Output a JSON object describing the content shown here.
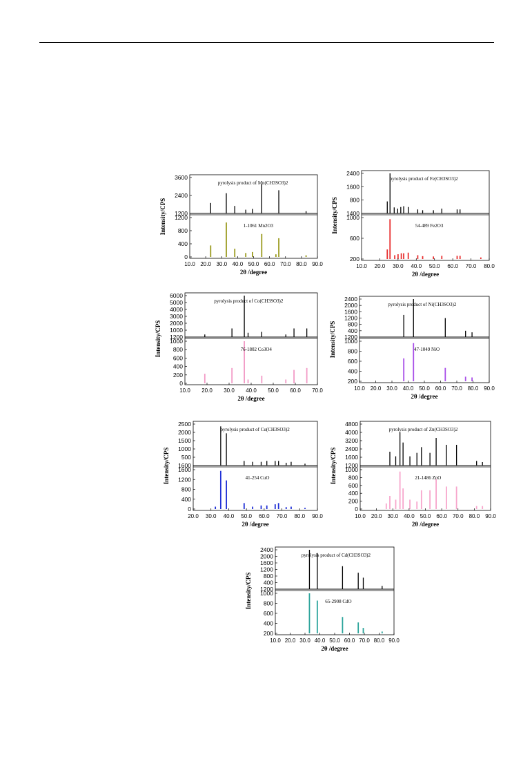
{
  "chart_data": [
    {
      "type": "bar",
      "panel": "Mn",
      "xlabel": "2θ /degree",
      "ylabel": "Intensity/CPS",
      "xticks": [
        "10.0",
        "20.0",
        "30.0",
        "40.0",
        "50.0",
        "60.0",
        "70.0",
        "80.0",
        "90.0"
      ],
      "xlim": [
        10,
        90
      ],
      "top": {
        "title": "pyrolysis product of Mn(CH3SO3)2",
        "yticks": [
          "3600",
          "2400",
          "1200"
        ],
        "ylim": [
          1200,
          3600
        ],
        "color": "#000000",
        "peaks": [
          [
            23.1,
            1900
          ],
          [
            32.9,
            2550
          ],
          [
            38.2,
            1700
          ],
          [
            45.1,
            1450
          ],
          [
            49.3,
            1500
          ],
          [
            55.1,
            3150
          ],
          [
            65.8,
            2750
          ],
          [
            82.9,
            1350
          ]
        ]
      },
      "bottom": {
        "title": "1-1061 Mn2O3",
        "yticks": [
          "1200",
          "800",
          "400",
          "0"
        ],
        "ylim": [
          0,
          1200
        ],
        "color": "#9a9a1e",
        "peaks": [
          [
            23.1,
            350
          ],
          [
            32.9,
            1050
          ],
          [
            38.2,
            250
          ],
          [
            45.1,
            120
          ],
          [
            49.3,
            150
          ],
          [
            55.1,
            700
          ],
          [
            64.0,
            80
          ],
          [
            65.8,
            570
          ],
          [
            82.9,
            50
          ]
        ]
      }
    },
    {
      "type": "bar",
      "panel": "Fe",
      "xlabel": "2θ /degree",
      "ylabel": "Intensity/CPS",
      "xticks": [
        "10.0",
        "20.0",
        "30.0",
        "40.0",
        "50.0",
        "60.0",
        "70.0",
        "80.0"
      ],
      "xlim": [
        10,
        80
      ],
      "top": {
        "title": "pyrolysis product of Fe(CH3SO3)2",
        "yticks": [
          "2400",
          "1600",
          "800",
          "1400"
        ],
        "ylim": [
          1400,
          2400
        ],
        "color": "#000000",
        "peaks": [
          [
            24.1,
            1700
          ],
          [
            25.6,
            2400
          ],
          [
            27.9,
            1550
          ],
          [
            29.8,
            1520
          ],
          [
            31.5,
            1560
          ],
          [
            33.1,
            1580
          ],
          [
            35.6,
            1560
          ],
          [
            40.8,
            1500
          ],
          [
            43.5,
            1480
          ],
          [
            49.4,
            1480
          ],
          [
            54.0,
            1520
          ],
          [
            62.4,
            1500
          ],
          [
            64.0,
            1500
          ]
        ]
      },
      "bottom": {
        "title": "54-489 Fe2O3",
        "yticks": [
          "1000",
          "600",
          "200"
        ],
        "ylim": [
          0,
          1300
        ],
        "color": "#e83030",
        "peaks": [
          [
            24.1,
            300
          ],
          [
            25.6,
            1250
          ],
          [
            28.2,
            120
          ],
          [
            30.0,
            150
          ],
          [
            31.8,
            180
          ],
          [
            33.1,
            180
          ],
          [
            35.6,
            200
          ],
          [
            40.8,
            120
          ],
          [
            43.5,
            90
          ],
          [
            49.4,
            80
          ],
          [
            54.0,
            100
          ],
          [
            62.4,
            100
          ],
          [
            64.0,
            100
          ],
          [
            75.4,
            50
          ]
        ]
      }
    },
    {
      "type": "bar",
      "panel": "Co",
      "xlabel": "2θ /degree",
      "ylabel": "Intensity/CPS",
      "xticks": [
        "10.0",
        "20.0",
        "30.0",
        "40.0",
        "50.0",
        "60.0",
        "70.0"
      ],
      "xlim": [
        10,
        70
      ],
      "top": {
        "title": "pyrolysis product of Co(CH3SO3)2",
        "yticks": [
          "6000",
          "5000",
          "4000",
          "3000",
          "2000",
          "1000",
          "1200"
        ],
        "ylim": [
          1200,
          6000
        ],
        "color": "#000000",
        "peaks": [
          [
            19.0,
            1500
          ],
          [
            31.3,
            2200
          ],
          [
            36.9,
            6000
          ],
          [
            38.6,
            1700
          ],
          [
            44.8,
            1800
          ],
          [
            55.7,
            1500
          ],
          [
            59.4,
            2200
          ],
          [
            65.2,
            2200
          ]
        ]
      },
      "bottom": {
        "title": "76-1802 Co3O4",
        "yticks": [
          "1000",
          "800",
          "600",
          "400",
          "200",
          "0"
        ],
        "ylim": [
          0,
          1100
        ],
        "color": "#f29ac6",
        "peaks": [
          [
            19.0,
            250
          ],
          [
            31.3,
            400
          ],
          [
            36.9,
            1100
          ],
          [
            38.6,
            100
          ],
          [
            44.8,
            200
          ],
          [
            55.7,
            100
          ],
          [
            59.4,
            350
          ],
          [
            65.2,
            400
          ]
        ]
      }
    },
    {
      "type": "bar",
      "panel": "Ni",
      "xlabel": "2θ /degree",
      "ylabel": "Intensity/CPS",
      "xticks": [
        "10.0",
        "20.0",
        "30.0",
        "40.0",
        "50.0",
        "60.0",
        "70.0",
        "80.0",
        "90.0"
      ],
      "xlim": [
        10,
        90
      ],
      "top": {
        "title": "pyrolysis product of Ni(CH3SO3)2",
        "yticks": [
          "2400",
          "2000",
          "1600",
          "1200",
          "800",
          "400",
          "1200"
        ],
        "ylim": [
          1200,
          2400
        ],
        "color": "#000000",
        "peaks": [
          [
            37.3,
            1900
          ],
          [
            43.3,
            2400
          ],
          [
            62.9,
            1800
          ],
          [
            75.4,
            1400
          ],
          [
            79.4,
            1350
          ]
        ]
      },
      "bottom": {
        "title": "47-1049 NiO",
        "yticks": [
          "1000",
          "800",
          "600",
          "400",
          "200"
        ],
        "ylim": [
          0,
          1050
        ],
        "color": "#a84ee8",
        "peaks": [
          [
            37.3,
            600
          ],
          [
            43.3,
            1000
          ],
          [
            62.9,
            350
          ],
          [
            75.4,
            120
          ],
          [
            79.4,
            100
          ]
        ]
      }
    },
    {
      "type": "bar",
      "panel": "Cu",
      "xlabel": "2θ /degree",
      "ylabel": "Intensity/CPS",
      "xticks": [
        "20.0",
        "30.0",
        "40.0",
        "50.0",
        "60.0",
        "70.0",
        "80.0",
        "90.0"
      ],
      "xlim": [
        20,
        90
      ],
      "top": {
        "title": "pyrolysis product of Cu(CH3SO3)2",
        "yticks": [
          "2500",
          "2000",
          "1500",
          "1000",
          "500",
          "1600"
        ],
        "ylim": [
          1600,
          2500
        ],
        "color": "#000000",
        "peaks": [
          [
            35.5,
            2450
          ],
          [
            38.7,
            2300
          ],
          [
            48.7,
            1700
          ],
          [
            53.5,
            1680
          ],
          [
            58.3,
            1680
          ],
          [
            61.5,
            1700
          ],
          [
            66.2,
            1700
          ],
          [
            68.1,
            1700
          ],
          [
            72.4,
            1660
          ],
          [
            75.2,
            1680
          ],
          [
            83.0,
            1640
          ]
        ]
      },
      "bottom": {
        "title": "41-254 CuO",
        "yticks": [
          "1600",
          "1200",
          "800",
          "400",
          "0"
        ],
        "ylim": [
          0,
          1650
        ],
        "color": "#1f2fd6",
        "peaks": [
          [
            32.5,
            100
          ],
          [
            35.5,
            1600
          ],
          [
            38.7,
            1200
          ],
          [
            48.7,
            250
          ],
          [
            53.5,
            100
          ],
          [
            58.3,
            150
          ],
          [
            61.5,
            150
          ],
          [
            66.2,
            200
          ],
          [
            68.1,
            250
          ],
          [
            72.4,
            80
          ],
          [
            75.2,
            100
          ],
          [
            83.0,
            50
          ]
        ]
      }
    },
    {
      "type": "bar",
      "panel": "Zn",
      "xlabel": "2θ /degree",
      "ylabel": "Intensity/CPS",
      "xticks": [
        "10.0",
        "20.0",
        "30.0",
        "40.0",
        "50.0",
        "60.0",
        "70.0",
        "80.0",
        "90.0"
      ],
      "xlim": [
        10,
        90
      ],
      "top": {
        "title": "pyrolysis product of Zn(CH3SO3)2",
        "yticks": [
          "4800",
          "4000",
          "3200",
          "2400",
          "1600",
          "1200"
        ],
        "ylim": [
          1200,
          4800
        ],
        "color": "#000000",
        "peaks": [
          [
            28.2,
            2400
          ],
          [
            31.8,
            2000
          ],
          [
            34.4,
            4100
          ],
          [
            36.3,
            3200
          ],
          [
            40.5,
            2000
          ],
          [
            44.8,
            2300
          ],
          [
            47.6,
            2800
          ],
          [
            52.8,
            2300
          ],
          [
            56.6,
            3600
          ],
          [
            62.9,
            3000
          ],
          [
            69.1,
            3000
          ],
          [
            81.4,
            1600
          ],
          [
            85.0,
            1500
          ]
        ]
      },
      "bottom": {
        "title": "21-1486 ZnO",
        "yticks": [
          "1000",
          "800",
          "600",
          "400",
          "200",
          "0"
        ],
        "ylim": [
          0,
          1050
        ],
        "color": "#f7a6cc",
        "peaks": [
          [
            26.0,
            150
          ],
          [
            28.2,
            350
          ],
          [
            31.8,
            250
          ],
          [
            34.4,
            1000
          ],
          [
            36.3,
            550
          ],
          [
            40.5,
            250
          ],
          [
            44.8,
            200
          ],
          [
            47.6,
            500
          ],
          [
            52.8,
            500
          ],
          [
            56.6,
            800
          ],
          [
            62.9,
            600
          ],
          [
            69.1,
            600
          ],
          [
            81.4,
            80
          ],
          [
            85.0,
            80
          ]
        ]
      }
    },
    {
      "type": "bar",
      "panel": "Cd",
      "xlabel": "2θ /degree",
      "ylabel": "Intensity/CPS",
      "xticks": [
        "10.0",
        "20.0",
        "30.0",
        "40.0",
        "50.0",
        "60.0",
        "70.0",
        "80.0",
        "90.0"
      ],
      "xlim": [
        10,
        90
      ],
      "top": {
        "title": "pyrolysis product of Cd(CH3SO3)2",
        "yticks": [
          "2400",
          "2000",
          "1600",
          "1200",
          "800",
          "400",
          "1200"
        ],
        "ylim": [
          1200,
          2400
        ],
        "color": "#000000",
        "peaks": [
          [
            33.0,
            2400
          ],
          [
            38.3,
            2300
          ],
          [
            55.3,
            1900
          ],
          [
            65.9,
            1700
          ],
          [
            69.3,
            1550
          ],
          [
            82.0,
            1300
          ]
        ]
      },
      "bottom": {
        "title": "65-2908 CdO",
        "yticks": [
          "1000",
          "800",
          "600",
          "400",
          "200"
        ],
        "ylim": [
          0,
          1100
        ],
        "color": "#2aa39a",
        "peaks": [
          [
            33.0,
            1100
          ],
          [
            38.3,
            900
          ],
          [
            55.3,
            450
          ],
          [
            65.9,
            300
          ],
          [
            69.3,
            150
          ],
          [
            82.0,
            50
          ]
        ]
      }
    }
  ]
}
